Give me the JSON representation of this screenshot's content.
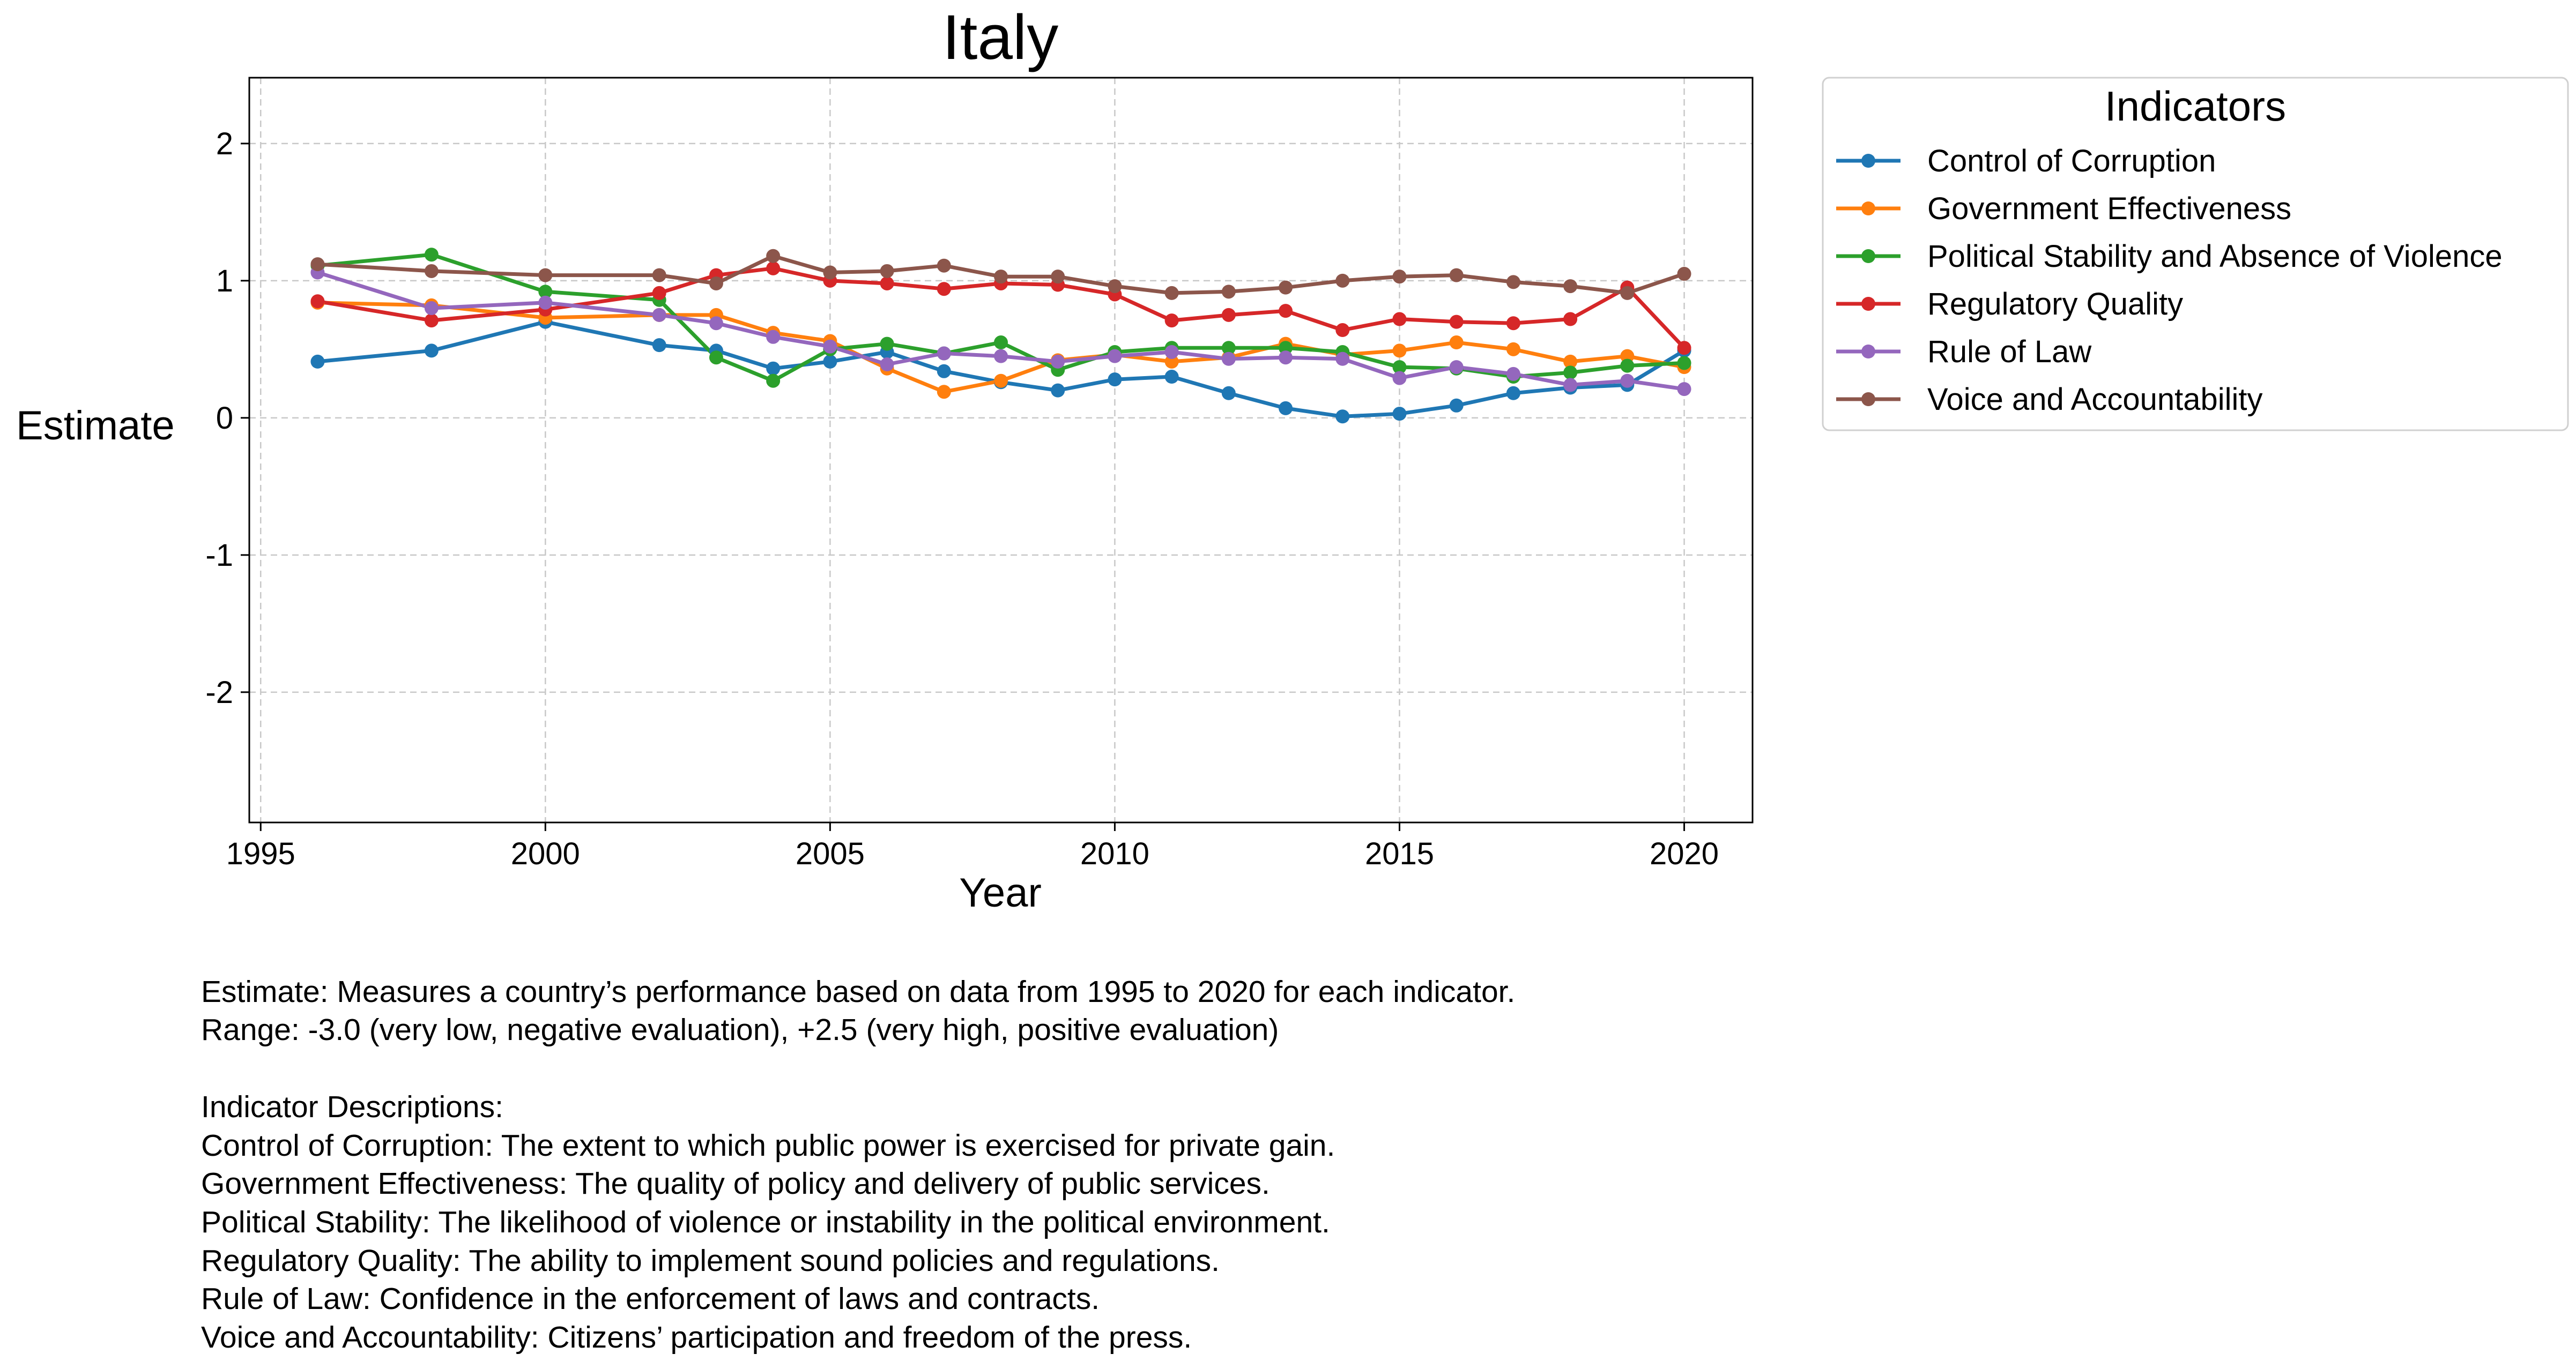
{
  "chart_data": {
    "type": "line",
    "title": "Italy",
    "xlabel": "Year",
    "ylabel": "Estimate",
    "xlim": [
      1994.8,
      2021.2
    ],
    "ylim": [
      -2.95,
      2.48
    ],
    "xticks": [
      1995,
      2000,
      2005,
      2010,
      2015,
      2020
    ],
    "yticks": [
      2,
      1,
      0,
      -1,
      -2
    ],
    "grid": true,
    "legend": {
      "title": "Indicators",
      "position": "outside-right-top"
    },
    "x": [
      1996,
      1998,
      2000,
      2002,
      2003,
      2004,
      2005,
      2006,
      2007,
      2008,
      2009,
      2010,
      2011,
      2012,
      2013,
      2014,
      2015,
      2016,
      2017,
      2018,
      2019,
      2020
    ],
    "series": [
      {
        "name": "Control of Corruption",
        "color": "#1f77b4",
        "values": [
          0.41,
          0.49,
          0.7,
          0.53,
          0.49,
          0.36,
          0.41,
          0.48,
          0.34,
          0.26,
          0.2,
          0.28,
          0.3,
          0.18,
          0.07,
          0.01,
          0.03,
          0.09,
          0.18,
          0.22,
          0.24,
          0.49
        ]
      },
      {
        "name": "Government Effectiveness",
        "color": "#ff7f0e",
        "values": [
          0.84,
          0.82,
          0.73,
          0.75,
          0.75,
          0.62,
          0.56,
          0.36,
          0.19,
          0.27,
          0.42,
          0.46,
          0.41,
          0.44,
          0.54,
          0.46,
          0.49,
          0.55,
          0.5,
          0.41,
          0.45,
          0.37
        ]
      },
      {
        "name": "Political Stability and Absence of Violence",
        "color": "#2ca02c",
        "values": [
          1.11,
          1.19,
          0.92,
          0.86,
          0.44,
          0.27,
          0.5,
          0.54,
          0.47,
          0.55,
          0.35,
          0.48,
          0.51,
          0.51,
          0.51,
          0.48,
          0.37,
          0.36,
          0.3,
          0.33,
          0.38,
          0.4
        ]
      },
      {
        "name": "Regulatory Quality",
        "color": "#d62728",
        "values": [
          0.85,
          0.71,
          0.79,
          0.91,
          1.04,
          1.09,
          1.0,
          0.98,
          0.94,
          0.98,
          0.97,
          0.9,
          0.71,
          0.75,
          0.78,
          0.64,
          0.72,
          0.7,
          0.69,
          0.72,
          0.95,
          0.51
        ]
      },
      {
        "name": "Rule of Law",
        "color": "#9467bd",
        "values": [
          1.06,
          0.8,
          0.84,
          0.75,
          0.69,
          0.59,
          0.52,
          0.39,
          0.47,
          0.45,
          0.41,
          0.45,
          0.48,
          0.43,
          0.44,
          0.43,
          0.29,
          0.37,
          0.32,
          0.24,
          0.27,
          0.21
        ]
      },
      {
        "name": "Voice and Accountability",
        "color": "#8c564b",
        "values": [
          1.12,
          1.07,
          1.04,
          1.04,
          0.98,
          1.18,
          1.06,
          1.07,
          1.11,
          1.03,
          1.03,
          0.96,
          0.91,
          0.92,
          0.95,
          1.0,
          1.03,
          1.04,
          0.99,
          0.96,
          0.91,
          1.05
        ]
      }
    ]
  },
  "notes": {
    "line1": "Estimate: Measures a country’s performance based on data from 1995 to 2020 for each indicator.",
    "line2": "Range: -3.0 (very low, negative evaluation), +2.5 (very high, positive evaluation)",
    "line3": "Indicator Descriptions:",
    "line4": "Control of Corruption: The extent to which public power is exercised for private gain.",
    "line5": "Government Effectiveness: The quality of policy and delivery of public services.",
    "line6": "Political Stability: The likelihood of violence or instability in the political environment.",
    "line7": "Regulatory Quality: The ability to implement sound policies and regulations.",
    "line8": "Rule of Law: Confidence in the enforcement of laws and contracts.",
    "line9": "Voice and Accountability: Citizens’ participation and freedom of the press."
  }
}
